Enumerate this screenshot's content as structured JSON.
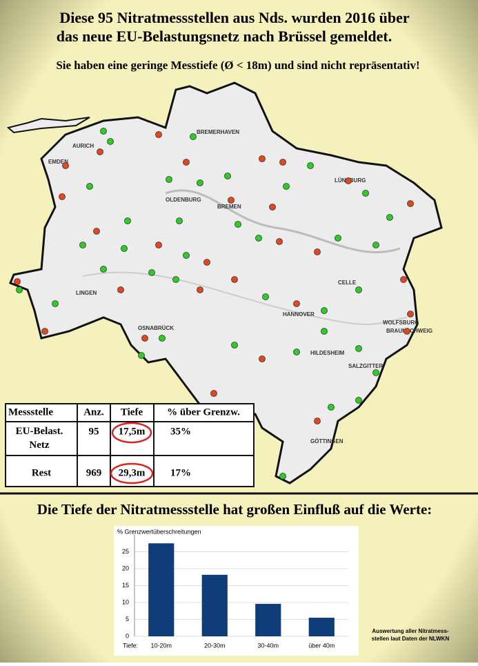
{
  "header": {
    "title_lines": [
      "Diese 95 Nitratmessstellen aus Nds. wurden 2016 über",
      "das neue EU-Belastungsnetz nach Brüssel gemeldet."
    ],
    "subtitle": "Sie haben eine geringe Messtiefe (Ø < 18m) und sind nicht  repräsentativ!"
  },
  "map": {
    "labels": [
      "EMDEN",
      "AURICH",
      "BREMERHAVEN",
      "OLDENBURG",
      "BREMEN",
      "LÜNEBURG",
      "CELLE",
      "LINGEN",
      "OSNABRÜCK",
      "HANNOVER",
      "WOLFSBURG",
      "BRAUNSCHWEIG",
      "HILDESHEIM",
      "SALZGITTER",
      "GÖTTINGEN"
    ]
  },
  "table": {
    "header": [
      "Messstelle",
      "Anz.",
      "Tiefe",
      "% über Grenzw."
    ],
    "rows": [
      [
        "EU-Belast. Netz",
        "95",
        "17,5m",
        "35%"
      ],
      [
        "Rest",
        "969",
        "29,3m",
        "17%"
      ]
    ]
  },
  "section_title": "Die Tiefe der Nitratmessstelle hat großen Einfluß auf die Werte:",
  "chart_data": {
    "type": "bar",
    "y_label": "% Grenzwertüberschreitungen",
    "x_label": "Tiefe:",
    "categories": [
      "10-20m",
      "20-30m",
      "30-40m",
      "über 40m"
    ],
    "values": [
      27.5,
      18.2,
      9.6,
      5.5
    ],
    "color": "#0e3d7a",
    "ylim": [
      0,
      30
    ],
    "yticks": [
      0,
      5,
      10,
      15,
      20,
      25
    ],
    "grid": true
  },
  "footnote": [
    "Auswertung aller Nitratmess-",
    "stellen laut Daten der NLWKN"
  ]
}
